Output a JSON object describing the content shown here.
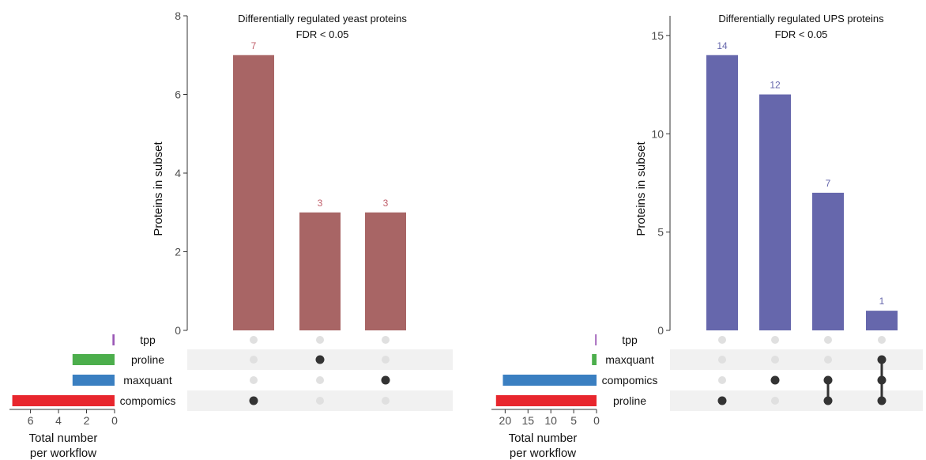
{
  "chart_data": [
    {
      "type": "upset",
      "title": "Differentially regulated yeast proteins",
      "subtitle": "FDR < 0.05",
      "ylabel": "Proteins in subset",
      "ylim": [
        0,
        8
      ],
      "yticks": [
        0,
        2,
        4,
        6,
        8
      ],
      "bar_color": "#a86565",
      "bar_label_color": "#c05e6a",
      "intersections": [
        {
          "sets": [
            "compomics"
          ],
          "value": 7
        },
        {
          "sets": [
            "proline"
          ],
          "value": 3
        },
        {
          "sets": [
            "maxquant"
          ],
          "value": 3
        }
      ],
      "sets": [
        {
          "name": "tpp",
          "size": 0.15,
          "color": "#9b59b6"
        },
        {
          "name": "proline",
          "size": 3,
          "color": "#4cae4c"
        },
        {
          "name": "maxquant",
          "size": 3,
          "color": "#3a7fc1"
        },
        {
          "name": "compomics",
          "size": 7.3,
          "color": "#e8262d"
        }
      ],
      "set_size_axis": {
        "label_line1": "Total number",
        "label_line2": "per workflow",
        "max": 7.5,
        "ticks": [
          6,
          4,
          2,
          0
        ]
      }
    },
    {
      "type": "upset",
      "title": "Differentially regulated UPS proteins",
      "subtitle": "FDR < 0.05",
      "ylabel": "Proteins in subset",
      "ylim": [
        0,
        16
      ],
      "yticks": [
        0,
        5,
        10,
        15
      ],
      "bar_color": "#6667ac",
      "bar_label_color": "#6667ac",
      "intersections": [
        {
          "sets": [
            "proline"
          ],
          "value": 14
        },
        {
          "sets": [
            "compomics"
          ],
          "value": 12
        },
        {
          "sets": [
            "compomics",
            "proline"
          ],
          "value": 7
        },
        {
          "sets": [
            "maxquant",
            "compomics",
            "proline"
          ],
          "value": 1
        }
      ],
      "sets": [
        {
          "name": "tpp",
          "size": 0.3,
          "color": "#9b59b6"
        },
        {
          "name": "maxquant",
          "size": 1,
          "color": "#4cae4c"
        },
        {
          "name": "compomics",
          "size": 20.5,
          "color": "#3a7fc1"
        },
        {
          "name": "proline",
          "size": 22,
          "color": "#e8262d"
        }
      ],
      "set_size_axis": {
        "label_line1": "Total number",
        "label_line2": "per workflow",
        "max": 23,
        "ticks": [
          20,
          15,
          10,
          5,
          0
        ]
      }
    }
  ]
}
